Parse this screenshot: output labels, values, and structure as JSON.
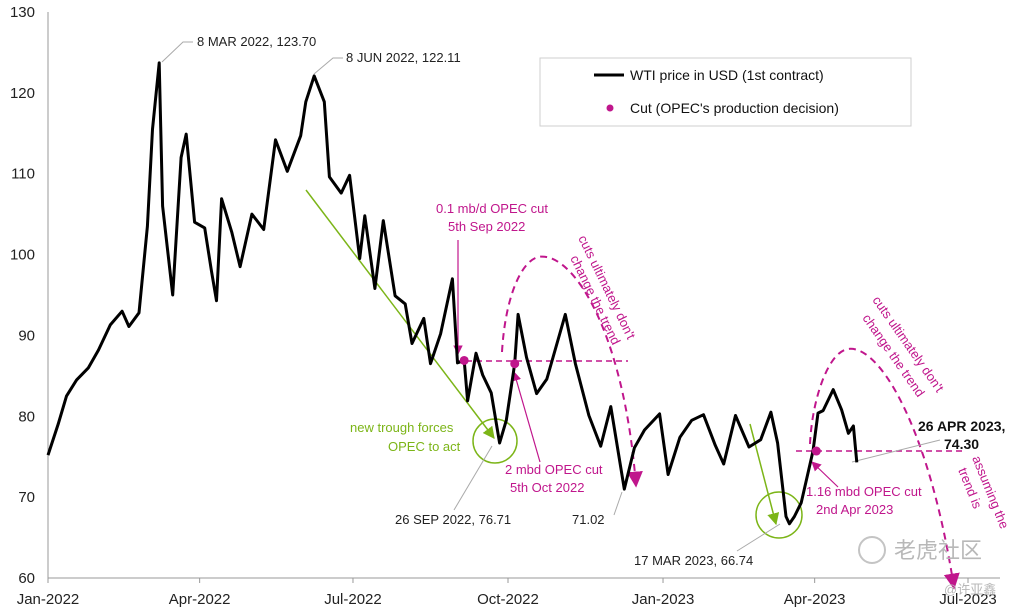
{
  "chart_data": {
    "type": "line",
    "xlim": [
      "2022-01-01",
      "2023-07-01"
    ],
    "ylim": [
      60,
      130
    ],
    "y_ticks": [
      60,
      70,
      80,
      90,
      100,
      110,
      120,
      130
    ],
    "x_ticks": [
      "Jan-2022",
      "Apr-2022",
      "Jul-2022",
      "Oct-2022",
      "Jan-2023",
      "Apr-2023",
      "Jul-2023"
    ],
    "grid": false,
    "legend": {
      "position": "top-right",
      "entries": [
        "WTI price in USD (1st contract)",
        "Cut (OPEC's production decision)"
      ]
    },
    "series": [
      {
        "name": "WTI price in USD (1st contract)",
        "color": "#000000",
        "points": [
          [
            "2022-01-01",
            75.2
          ],
          [
            "2022-01-07",
            79.0
          ],
          [
            "2022-01-12",
            82.5
          ],
          [
            "2022-01-18",
            84.5
          ],
          [
            "2022-01-25",
            86.0
          ],
          [
            "2022-01-31",
            88.2
          ],
          [
            "2022-02-07",
            91.3
          ],
          [
            "2022-02-14",
            93.0
          ],
          [
            "2022-02-18",
            91.1
          ],
          [
            "2022-02-24",
            92.8
          ],
          [
            "2022-03-01",
            103.5
          ],
          [
            "2022-03-04",
            115.5
          ],
          [
            "2022-03-08",
            123.7
          ],
          [
            "2022-03-10",
            106.0
          ],
          [
            "2022-03-16",
            95.0
          ],
          [
            "2022-03-21",
            112.0
          ],
          [
            "2022-03-24",
            114.9
          ],
          [
            "2022-03-29",
            104.0
          ],
          [
            "2022-04-04",
            103.3
          ],
          [
            "2022-04-08",
            98.0
          ],
          [
            "2022-04-11",
            94.3
          ],
          [
            "2022-04-14",
            106.9
          ],
          [
            "2022-04-20",
            102.8
          ],
          [
            "2022-04-25",
            98.5
          ],
          [
            "2022-05-02",
            105.0
          ],
          [
            "2022-05-09",
            103.1
          ],
          [
            "2022-05-16",
            114.2
          ],
          [
            "2022-05-23",
            110.3
          ],
          [
            "2022-05-31",
            114.7
          ],
          [
            "2022-06-03",
            118.9
          ],
          [
            "2022-06-08",
            122.1
          ],
          [
            "2022-06-14",
            118.9
          ],
          [
            "2022-06-17",
            109.6
          ],
          [
            "2022-06-24",
            107.6
          ],
          [
            "2022-06-29",
            109.8
          ],
          [
            "2022-07-05",
            99.5
          ],
          [
            "2022-07-08",
            104.8
          ],
          [
            "2022-07-14",
            95.8
          ],
          [
            "2022-07-19",
            104.2
          ],
          [
            "2022-07-26",
            94.9
          ],
          [
            "2022-08-01",
            93.9
          ],
          [
            "2022-08-05",
            89.0
          ],
          [
            "2022-08-12",
            92.1
          ],
          [
            "2022-08-16",
            86.5
          ],
          [
            "2022-08-22",
            90.2
          ],
          [
            "2022-08-29",
            97.0
          ],
          [
            "2022-09-01",
            86.6
          ],
          [
            "2022-09-05",
            86.9
          ],
          [
            "2022-09-07",
            81.9
          ],
          [
            "2022-09-12",
            87.8
          ],
          [
            "2022-09-16",
            85.1
          ],
          [
            "2022-09-21",
            82.9
          ],
          [
            "2022-09-26",
            76.7
          ],
          [
            "2022-09-30",
            79.5
          ],
          [
            "2022-10-05",
            86.5
          ],
          [
            "2022-10-07",
            92.6
          ],
          [
            "2022-10-12",
            87.3
          ],
          [
            "2022-10-18",
            82.8
          ],
          [
            "2022-10-24",
            84.6
          ],
          [
            "2022-11-04",
            92.6
          ],
          [
            "2022-11-10",
            86.5
          ],
          [
            "2022-11-18",
            80.1
          ],
          [
            "2022-11-25",
            76.3
          ],
          [
            "2022-12-01",
            81.2
          ],
          [
            "2022-12-09",
            71.0
          ],
          [
            "2022-12-15",
            76.1
          ],
          [
            "2022-12-21",
            78.3
          ],
          [
            "2022-12-30",
            80.3
          ],
          [
            "2023-01-04",
            72.8
          ],
          [
            "2023-01-11",
            77.4
          ],
          [
            "2023-01-18",
            79.5
          ],
          [
            "2023-01-25",
            80.2
          ],
          [
            "2023-02-01",
            76.4
          ],
          [
            "2023-02-06",
            74.1
          ],
          [
            "2023-02-13",
            80.1
          ],
          [
            "2023-02-21",
            76.2
          ],
          [
            "2023-02-28",
            77.1
          ],
          [
            "2023-03-06",
            80.5
          ],
          [
            "2023-03-10",
            76.7
          ],
          [
            "2023-03-15",
            67.6
          ],
          [
            "2023-03-17",
            66.7
          ],
          [
            "2023-03-20",
            67.6
          ],
          [
            "2023-03-24",
            69.3
          ],
          [
            "2023-03-31",
            75.7
          ],
          [
            "2023-04-03",
            80.4
          ],
          [
            "2023-04-06",
            80.7
          ],
          [
            "2023-04-12",
            83.3
          ],
          [
            "2023-04-17",
            80.8
          ],
          [
            "2023-04-21",
            77.9
          ],
          [
            "2023-04-24",
            78.8
          ],
          [
            "2023-04-26",
            74.3
          ]
        ]
      }
    ],
    "cuts": [
      {
        "date": "2022-09-05",
        "value": 86.9
      },
      {
        "date": "2022-10-05",
        "value": 86.5
      },
      {
        "date": "2023-04-02",
        "value": 75.7
      }
    ],
    "annotations": {
      "peak1": "8 MAR 2022, 123.70",
      "peak2": "8 JUN 2022, 122.11",
      "cut1_line1": "0.1 mb/d OPEC cut",
      "cut1_line2": "5th Sep 2022",
      "curve1_line1": "cuts ultimately don't",
      "curve1_line2": "change the trend",
      "trough_line1": "new trough forces",
      "trough_line2": "OPEC to act",
      "cut2_line1": "2 mbd OPEC cut",
      "cut2_line2": "5th Oct 2022",
      "low_sep": "26 SEP 2022, 76.71",
      "low_dec": "71.02",
      "low_mar": "17 MAR 2023, 66.74",
      "cut3_line1": "1.16 mbd OPEC cut",
      "cut3_line2": "2nd Apr 2023",
      "curve2_line1": "cuts ultimately don't",
      "curve2_line2": "change the trend",
      "last_line1": "26 APR 2023,",
      "last_line2": "74.30",
      "assume_line1": "assuming the ",
      "assume_line2": "trend is "
    }
  },
  "colors": {
    "line": "#000000",
    "cut": "#c0168c",
    "accent": "#7cb518",
    "annotation": "#c0168c"
  },
  "watermark": {
    "text": "老虎社区",
    "handle": "@许亚鑫"
  }
}
